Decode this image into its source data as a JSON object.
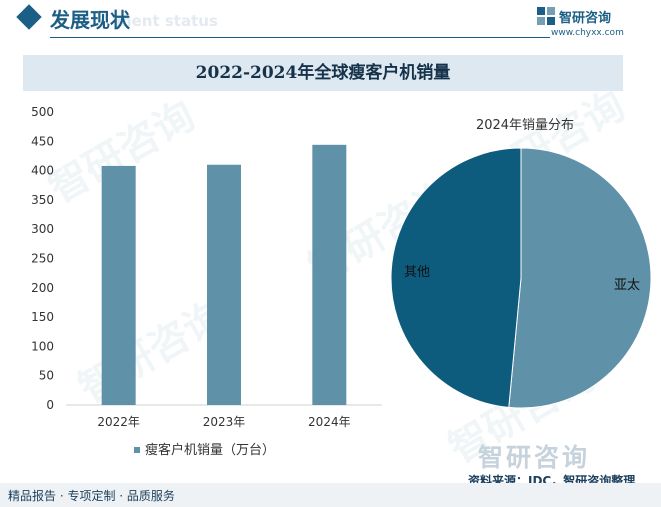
{
  "header": {
    "title": "发展现状",
    "ghost_text": "ment status",
    "brand_name": "智研咨询",
    "brand_url": "www.chyxx.com"
  },
  "colors": {
    "bar": "#5f91a8",
    "pie_others": "#0d5c7e",
    "pie_asia": "#5f91a8",
    "accent": "#1b5f86"
  },
  "chart_data": [
    {
      "type": "bar",
      "title": "2022-2024年全球瘦客户机销量",
      "categories": [
        "2022年",
        "2023年",
        "2024年"
      ],
      "values": [
        408,
        410,
        444
      ],
      "series_name": "瘦客户机销量（万台）",
      "ylim": [
        0,
        500
      ],
      "yticks": [
        0,
        50,
        100,
        150,
        200,
        250,
        300,
        350,
        400,
        450,
        500
      ],
      "grid": false,
      "legend": "bottom"
    },
    {
      "type": "pie",
      "title": "2024年销量分布",
      "labels": [
        "亚太",
        "其他"
      ],
      "values": [
        51.5,
        48.5
      ],
      "legend": "none"
    }
  ],
  "watermark": "智研咨询",
  "footer": {
    "mark": "智研咨询",
    "source": "资料来源：IDC，智研咨询整理",
    "tagline": "精品报告 · 专项定制 · 品质服务"
  }
}
